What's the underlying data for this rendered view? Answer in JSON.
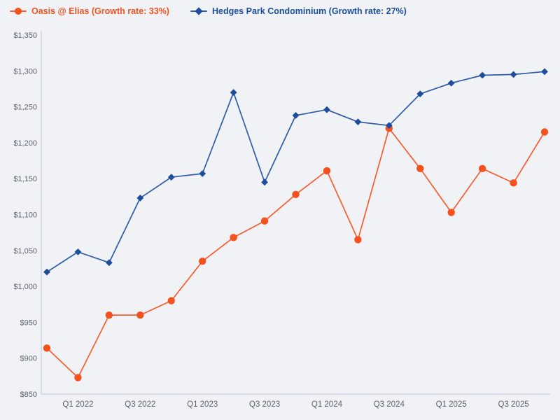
{
  "legend": {
    "items": [
      {
        "label": "Oasis @ Elias (Growth rate: 33%)",
        "marker": "circle",
        "color": "#f4511e",
        "line_color": "#f85c30"
      },
      {
        "label": "Hedges Park Condominium (Growth rate: 27%)",
        "marker": "diamond",
        "color": "#1d4d9b",
        "line_color": "#2e5ba8"
      }
    ]
  },
  "chart_data": {
    "type": "line",
    "title": "",
    "xlabel": "",
    "ylabel": "",
    "ylim": [
      850,
      1350
    ],
    "y_tick_labels": [
      "$850",
      "$900",
      "$950",
      "$1,000",
      "$1,050",
      "$1,100",
      "$1,150",
      "$1,200",
      "$1,250",
      "$1,300",
      "$1,350"
    ],
    "x_tick_labels": [
      "Q1 2022",
      "Q3 2022",
      "Q1 2023",
      "Q3 2023",
      "Q1 2024",
      "Q3 2024",
      "Q1 2025",
      "Q3 2025"
    ],
    "x_tick_indices": [
      1,
      3,
      5,
      7,
      9,
      11,
      13,
      15
    ],
    "categories": [
      "Q4 2021",
      "Q1 2022",
      "Q2 2022",
      "Q3 2022",
      "Q4 2022",
      "Q1 2023",
      "Q2 2023",
      "Q3 2023",
      "Q4 2023",
      "Q1 2024",
      "Q2 2024",
      "Q3 2024",
      "Q4 2024",
      "Q1 2025",
      "Q2 2025",
      "Q3 2025",
      "Q4 2025"
    ],
    "num_points": 17,
    "grid": false,
    "legend_position": "top-left",
    "series": [
      {
        "name": "Oasis @ Elias",
        "growth_rate": "33%",
        "marker": "circle",
        "color": "#f4511e",
        "line_color": "#f85c30",
        "values": [
          914,
          873,
          960,
          960,
          980,
          1035,
          1068,
          1091,
          1128,
          1161,
          1065,
          1220,
          1164,
          1103,
          1164,
          1144,
          1215
        ]
      },
      {
        "name": "Hedges Park Condominium",
        "growth_rate": "27%",
        "marker": "diamond",
        "color": "#1d4d9b",
        "line_color": "#2e5ba8",
        "values": [
          1020,
          1048,
          1033,
          1123,
          1152,
          1157,
          1270,
          1145,
          1238,
          1246,
          1229,
          1224,
          1268,
          1283,
          1294,
          1295,
          1299
        ]
      }
    ]
  },
  "colors": {
    "background": "#f0f2f5",
    "axis_line": "#c8d3e4",
    "tick_label": "#5a6372"
  }
}
